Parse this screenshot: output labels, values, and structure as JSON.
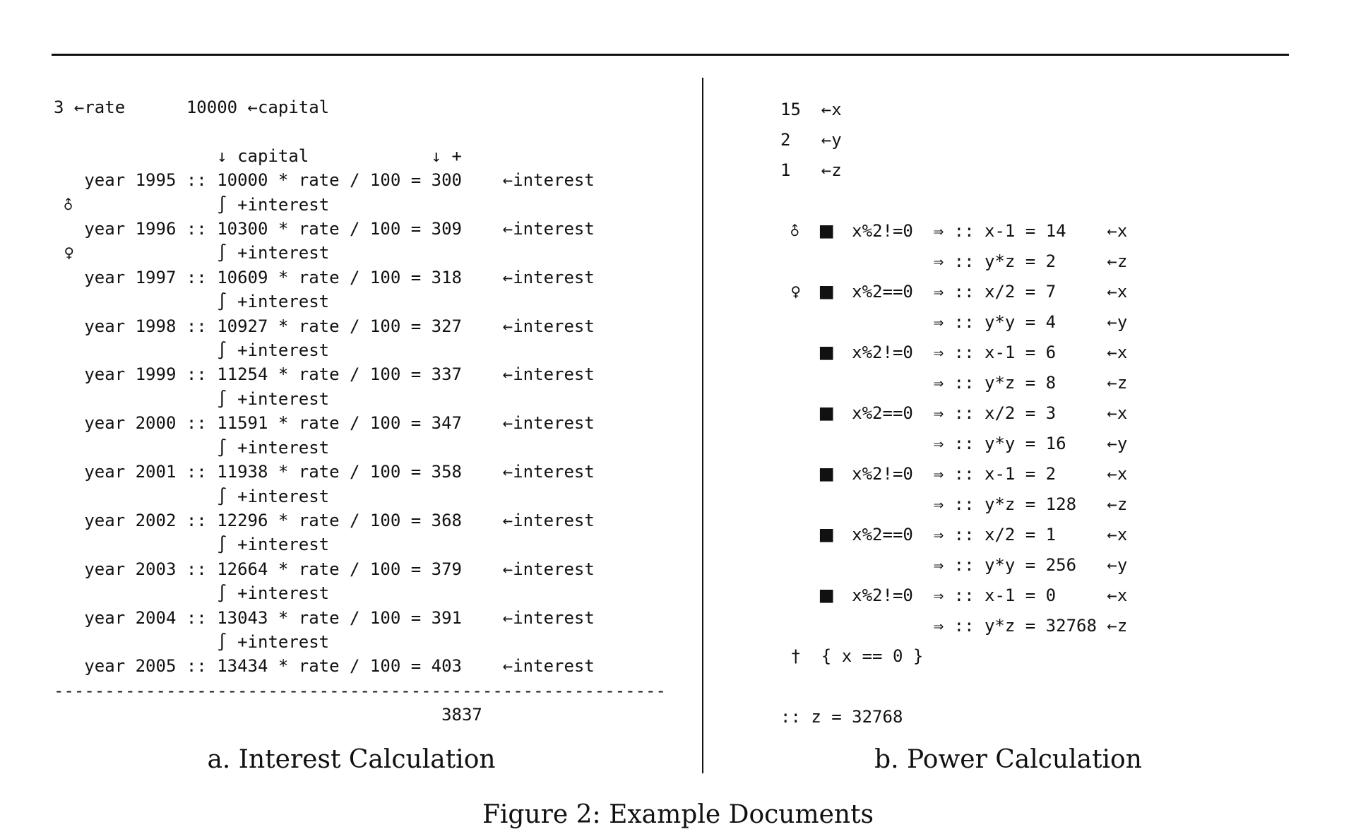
{
  "colors": {
    "background": "#ffffff",
    "text": "#111111",
    "rule": "#111111"
  },
  "glyph_legend": {
    "loop_begin_marker": "♂",
    "loop_end_marker": "♀",
    "block_marker": "■",
    "assertion_marker": "†",
    "fold_marker": "∫"
  },
  "figure": {
    "caption": "Figure 2: Example Documents",
    "panel_a": {
      "caption": "a. Interest Calculation",
      "code_lines": [
        "3 ←rate      10000 ←capital",
        "",
        "                ↓ capital            ↓ +",
        "   year 1995 :: 10000 * rate / 100 = 300    ←interest",
        " ♂              ∫ +interest",
        "   year 1996 :: 10300 * rate / 100 = 309    ←interest",
        " ♀              ∫ +interest",
        "   year 1997 :: 10609 * rate / 100 = 318    ←interest",
        "                ∫ +interest",
        "   year 1998 :: 10927 * rate / 100 = 327    ←interest",
        "                ∫ +interest",
        "   year 1999 :: 11254 * rate / 100 = 337    ←interest",
        "                ∫ +interest",
        "   year 2000 :: 11591 * rate / 100 = 347    ←interest",
        "                ∫ +interest",
        "   year 2001 :: 11938 * rate / 100 = 358    ←interest",
        "                ∫ +interest",
        "   year 2002 :: 12296 * rate / 100 = 368    ←interest",
        "                ∫ +interest",
        "   year 2003 :: 12664 * rate / 100 = 379    ←interest",
        "                ∫ +interest",
        "   year 2004 :: 13043 * rate / 100 = 391    ←interest",
        "                ∫ +interest",
        "   year 2005 :: 13434 * rate / 100 = 403    ←interest",
        "------------------------------------------------------------",
        "                                      3837"
      ]
    },
    "panel_b": {
      "caption": "b. Power Calculation",
      "code_lines": [
        "15  ←x",
        "2   ←y",
        "1   ←z",
        "",
        " ♂  ■  x%2!=0  ⇒ :: x-1 = 14    ←x",
        "               ⇒ :: y*z = 2     ←z",
        " ♀  ■  x%2==0  ⇒ :: x/2 = 7     ←x",
        "               ⇒ :: y*y = 4     ←y",
        "    ■  x%2!=0  ⇒ :: x-1 = 6     ←x",
        "               ⇒ :: y*z = 8     ←z",
        "    ■  x%2==0  ⇒ :: x/2 = 3     ←x",
        "               ⇒ :: y*y = 16    ←y",
        "    ■  x%2!=0  ⇒ :: x-1 = 2     ←x",
        "               ⇒ :: y*z = 128   ←z",
        "    ■  x%2==0  ⇒ :: x/2 = 1     ←x",
        "               ⇒ :: y*y = 256   ←y",
        "    ■  x%2!=0  ⇒ :: x-1 = 0     ←x",
        "               ⇒ :: y*z = 32768 ←z",
        " †  { x == 0 }",
        "",
        ":: z = 32768"
      ]
    }
  }
}
